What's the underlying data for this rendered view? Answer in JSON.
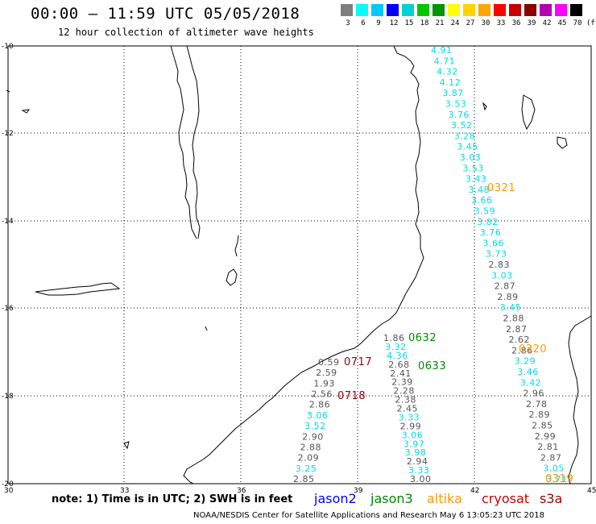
{
  "header": {
    "title": "00:00 — 11:59 UTC 05/05/2018",
    "subtitle": "12 hour collection of altimeter wave heights"
  },
  "legend": {
    "colors": [
      "#7f7f7f",
      "#00ffff",
      "#00c8ff",
      "#0000ff",
      "#00d2d2",
      "#00c800",
      "#009600",
      "#ffff00",
      "#ffd200",
      "#ffa500",
      "#ff0000",
      "#c80000",
      "#8b0000",
      "#b400b4",
      "#ff00ff",
      "#000000"
    ],
    "labels": [
      "3",
      "6",
      "9",
      "12",
      "15",
      "18",
      "21",
      "24",
      "27",
      "30",
      "33",
      "36",
      "39",
      "42",
      "45",
      "70"
    ],
    "unit": "(ft)"
  },
  "axes": {
    "y_labels": [
      "-10",
      "-12",
      "-14",
      "-16",
      "-18",
      "-20"
    ],
    "x_labels": [
      "30",
      "33",
      "36",
      "39",
      "42",
      "45"
    ]
  },
  "tracks": [
    {
      "sat": "jason3",
      "color": "#00e0e8",
      "points": [
        [
          "4.91",
          -9.93
        ],
        [
          "4.71",
          -10.12
        ],
        [
          "4.32",
          -10.33
        ],
        [
          "4.12",
          -10.52
        ],
        [
          "3.87",
          -10.73
        ],
        [
          "3.53",
          -10.93
        ],
        [
          "3.76",
          -11.13
        ],
        [
          "3.52",
          -11.33
        ],
        [
          "3.28",
          -11.53
        ],
        [
          "3.45",
          -11.73
        ],
        [
          "3.03",
          -11.93
        ],
        [
          "3.53",
          -12.13
        ],
        [
          "3.43",
          -12.33
        ],
        [
          "3.48",
          -12.53
        ],
        [
          "3.66",
          -12.73
        ],
        [
          "3.59",
          -12.93
        ],
        [
          "3.82",
          -13.13
        ],
        [
          "3.76",
          -13.33
        ],
        [
          "3.66",
          -13.53
        ],
        [
          "3.73",
          -13.73
        ]
      ]
    }
  ],
  "grid": {},
  "values": {
    "track_jason3_north": [
      {
        "v": "4.91",
        "c": "cyan"
      },
      {
        "v": "4.71",
        "c": "cyan"
      },
      {
        "v": "4.32",
        "c": "cyan"
      },
      {
        "v": "4.12",
        "c": "cyan"
      },
      {
        "v": "3.87",
        "c": "cyan"
      },
      {
        "v": "3.53",
        "c": "cyan"
      },
      {
        "v": "3.76",
        "c": "cyan"
      },
      {
        "v": "3.52",
        "c": "cyan"
      },
      {
        "v": "3.28",
        "c": "cyan"
      },
      {
        "v": "3.45",
        "c": "cyan"
      },
      {
        "v": "3.03",
        "c": "cyan"
      },
      {
        "v": "3.53",
        "c": "cyan"
      },
      {
        "v": "3.43",
        "c": "cyan"
      },
      {
        "v": "3.48",
        "c": "cyan"
      },
      {
        "v": "3.66",
        "c": "cyan"
      },
      {
        "v": "3.59",
        "c": "cyan"
      },
      {
        "v": "3.82",
        "c": "cyan"
      },
      {
        "v": "3.76",
        "c": "cyan"
      },
      {
        "v": "3.66",
        "c": "cyan"
      },
      {
        "v": "3.73",
        "c": "cyan"
      },
      {
        "v": "2.83",
        "c": "gray"
      },
      {
        "v": "3.03",
        "c": "cyan"
      },
      {
        "v": "2.87",
        "c": "gray"
      },
      {
        "v": "2.89",
        "c": "gray"
      },
      {
        "v": "3.45",
        "c": "cyan"
      },
      {
        "v": "2.88",
        "c": "gray"
      },
      {
        "v": "2.87",
        "c": "gray"
      },
      {
        "v": "2.62",
        "c": "gray"
      },
      {
        "v": "2.86",
        "c": "gray"
      },
      {
        "v": "3.29",
        "c": "cyan"
      },
      {
        "v": "3.46",
        "c": "cyan"
      },
      {
        "v": "3.42",
        "c": "cyan"
      },
      {
        "v": "2.96",
        "c": "gray"
      },
      {
        "v": "2.78",
        "c": "gray"
      },
      {
        "v": "2.89",
        "c": "gray"
      },
      {
        "v": "2.85",
        "c": "gray"
      },
      {
        "v": "2.99",
        "c": "gray"
      },
      {
        "v": "2.81",
        "c": "gray"
      },
      {
        "v": "2.87",
        "c": "gray"
      },
      {
        "v": "3.05",
        "c": "cyan"
      },
      {
        "v": "3.71",
        "c": "cyan"
      }
    ],
    "track_middle": [
      {
        "v": "1.86",
        "c": "gray"
      },
      {
        "v": "3.32",
        "c": "cyan"
      },
      {
        "v": "4.36",
        "c": "cyan"
      },
      {
        "v": "2.68",
        "c": "gray"
      },
      {
        "v": "2.41",
        "c": "gray"
      },
      {
        "v": "2.39",
        "c": "gray"
      },
      {
        "v": "2.28",
        "c": "gray"
      },
      {
        "v": "2.38",
        "c": "gray"
      },
      {
        "v": "2.45",
        "c": "gray"
      },
      {
        "v": "3.33",
        "c": "cyan"
      },
      {
        "v": "2.99",
        "c": "gray"
      },
      {
        "v": "3.06",
        "c": "cyan"
      },
      {
        "v": "3.97",
        "c": "cyan"
      },
      {
        "v": "3.98",
        "c": "cyan"
      },
      {
        "v": "2.94",
        "c": "gray"
      },
      {
        "v": "3.33",
        "c": "cyan"
      },
      {
        "v": "3.00",
        "c": "gray"
      }
    ],
    "track_west": [
      {
        "v": "0.59",
        "c": "gray"
      },
      {
        "v": "2.59",
        "c": "gray"
      },
      {
        "v": "1.93",
        "c": "gray"
      },
      {
        "v": "2.56",
        "c": "gray"
      },
      {
        "v": "2.86",
        "c": "gray"
      },
      {
        "v": "3.06",
        "c": "cyan"
      },
      {
        "v": "3.52",
        "c": "cyan"
      },
      {
        "v": "2.90",
        "c": "gray"
      },
      {
        "v": "2.88",
        "c": "gray"
      },
      {
        "v": "2.09",
        "c": "gray"
      },
      {
        "v": "3.25",
        "c": "cyan"
      },
      {
        "v": "2.85",
        "c": "gray"
      }
    ]
  },
  "pass_labels": [
    {
      "t": "0321",
      "c": "#ff9900"
    },
    {
      "t": "0632",
      "c": "#008800"
    },
    {
      "t": "0633",
      "c": "#008800"
    },
    {
      "t": "0717",
      "c": "#990000"
    },
    {
      "t": "0718",
      "c": "#990000"
    },
    {
      "t": "0320",
      "c": "#ff9900"
    },
    {
      "t": "0319",
      "c": "#ff9900"
    }
  ],
  "footer": {
    "note": "note:  1) Time is in UTC; 2) SWH is in feet",
    "satellites": [
      {
        "name": "jason2",
        "color": "#0000ff"
      },
      {
        "name": "jason3",
        "color": "#008800"
      },
      {
        "name": "altika",
        "color": "#ff9900"
      },
      {
        "name": "cryosat",
        "color": "#cc0000"
      },
      {
        "name": "s3a",
        "color": "#990000"
      }
    ],
    "credit": "NOAA/NESDIS Center for Satellite Applications and Research    May  6 13:05:23 UTC 2018"
  }
}
